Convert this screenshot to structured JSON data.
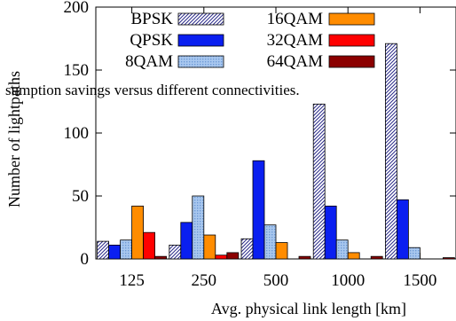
{
  "chart_data": {
    "type": "bar",
    "xlabel": "Avg. physical link length [km]",
    "ylabel": "Number of lightpaths",
    "categories": [
      "125",
      "250",
      "500",
      "1000",
      "1500"
    ],
    "ylim": [
      0,
      200
    ],
    "yticks": [
      "0",
      "50",
      "100",
      "150",
      "200"
    ],
    "legend_position": "top-left",
    "series": [
      {
        "name": "BPSK",
        "color": "#ffffff",
        "pattern": "diag",
        "values": [
          14,
          11,
          16,
          123,
          171
        ]
      },
      {
        "name": "QPSK",
        "color": "#0a1ff0",
        "pattern": "solid",
        "values": [
          11,
          29,
          78,
          42,
          47
        ]
      },
      {
        "name": "8QAM",
        "color": "#a9c8ef",
        "pattern": "dots",
        "values": [
          15,
          50,
          27,
          15,
          9
        ]
      },
      {
        "name": "16QAM",
        "color": "#ff8c00",
        "pattern": "solid",
        "values": [
          42,
          19,
          13,
          5,
          0
        ]
      },
      {
        "name": "32QAM",
        "color": "#ff0000",
        "pattern": "solid",
        "values": [
          21,
          3,
          0,
          0,
          0
        ]
      },
      {
        "name": "64QAM",
        "color": "#8b0000",
        "pattern": "solid",
        "values": [
          2,
          5,
          2,
          2,
          1
        ]
      }
    ]
  },
  "overlay_text": "sumption savings versus different connectivities."
}
